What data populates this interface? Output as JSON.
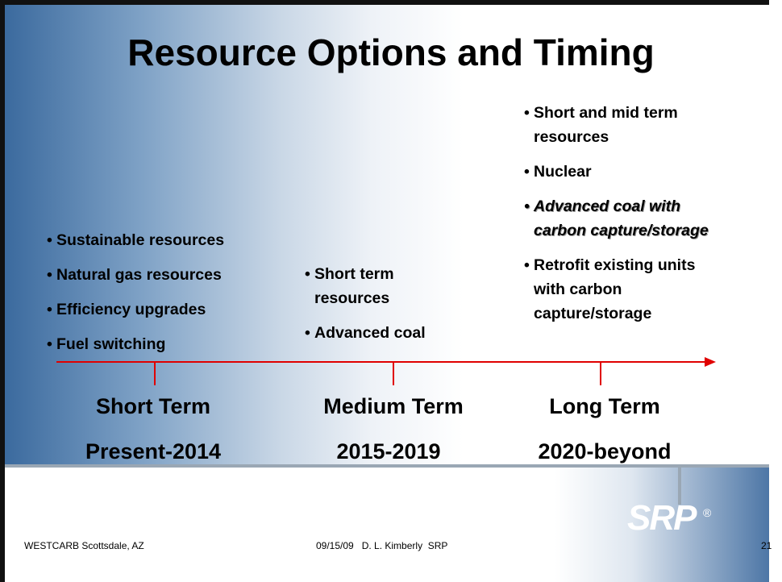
{
  "title": "Resource Options and Timing",
  "columns": [
    {
      "items": [
        {
          "text": "Sustainable resources"
        },
        {
          "text": "Natural gas resources"
        },
        {
          "text": "Efficiency upgrades"
        },
        {
          "text": "Fuel switching"
        }
      ],
      "term": "Short Term",
      "period": "Present-2014"
    },
    {
      "items": [
        {
          "text": "Short term resources"
        },
        {
          "text": "Advanced coal"
        }
      ],
      "term": "Medium Term",
      "period": "2015-2019"
    },
    {
      "items": [
        {
          "text": "Short and mid term resources"
        },
        {
          "text": "Nuclear"
        },
        {
          "text": "Advanced coal with carbon capture/storage",
          "italic": true
        },
        {
          "text": "Retrofit existing units with carbon capture/storage"
        }
      ],
      "term": "Long Term",
      "period": "2020-beyond"
    }
  ],
  "footer": {
    "left": "WESTCARB Scottsdale, AZ",
    "center": "09/15/09   D. L. Kimberly  SRP",
    "page": "21"
  },
  "logo": {
    "text": "SRP",
    "mark": "®"
  }
}
